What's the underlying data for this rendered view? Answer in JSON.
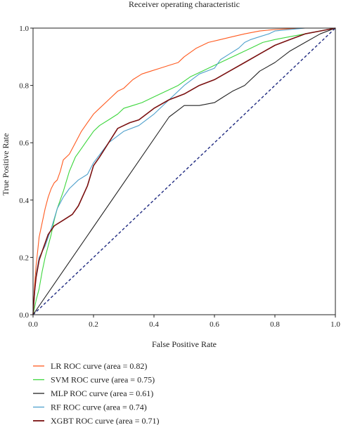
{
  "chart_data": {
    "type": "line",
    "title": "Receiver operating characteristic",
    "xlabel": "False Positive Rate",
    "ylabel": "True Positive Rate",
    "xlim": [
      0.0,
      1.0
    ],
    "ylim": [
      0.0,
      1.0
    ],
    "xticks": [
      "0.0",
      "0.2",
      "0.4",
      "0.6",
      "0.8",
      "1.0"
    ],
    "yticks": [
      "0.0",
      "0.2",
      "0.4",
      "0.6",
      "0.8",
      "1.0"
    ],
    "grid": false,
    "legend_position": "below",
    "diagonal": {
      "x": [
        0,
        1
      ],
      "y": [
        0,
        1
      ],
      "color": "#1f2a80",
      "style": "dashed"
    },
    "series": [
      {
        "name": "LR ROC curve (area = 0.82)",
        "color": "#ff5a1f",
        "x": [
          0,
          0.005,
          0.01,
          0.015,
          0.02,
          0.03,
          0.04,
          0.05,
          0.06,
          0.07,
          0.08,
          0.09,
          0.1,
          0.12,
          0.14,
          0.16,
          0.18,
          0.2,
          0.22,
          0.25,
          0.28,
          0.3,
          0.33,
          0.36,
          0.39,
          0.42,
          0.45,
          0.48,
          0.5,
          0.54,
          0.58,
          0.62,
          0.66,
          0.7,
          0.75,
          0.8,
          0.85,
          0.9,
          0.95,
          1.0
        ],
        "y": [
          0,
          0.1,
          0.17,
          0.22,
          0.27,
          0.32,
          0.37,
          0.41,
          0.44,
          0.46,
          0.47,
          0.5,
          0.54,
          0.56,
          0.6,
          0.64,
          0.67,
          0.7,
          0.72,
          0.75,
          0.78,
          0.79,
          0.82,
          0.84,
          0.85,
          0.86,
          0.87,
          0.88,
          0.9,
          0.93,
          0.95,
          0.96,
          0.97,
          0.98,
          0.99,
          0.995,
          0.998,
          1.0,
          1.0,
          1.0
        ]
      },
      {
        "name": "SVM ROC curve (area = 0.75)",
        "color": "#3cd63c",
        "x": [
          0,
          0.01,
          0.02,
          0.03,
          0.04,
          0.05,
          0.06,
          0.07,
          0.08,
          0.1,
          0.12,
          0.14,
          0.16,
          0.18,
          0.2,
          0.22,
          0.25,
          0.28,
          0.3,
          0.33,
          0.36,
          0.4,
          0.44,
          0.48,
          0.52,
          0.56,
          0.6,
          0.64,
          0.68,
          0.72,
          0.76,
          0.8,
          0.85,
          0.9,
          0.95,
          1.0
        ],
        "y": [
          0,
          0.05,
          0.09,
          0.15,
          0.2,
          0.24,
          0.28,
          0.33,
          0.37,
          0.43,
          0.5,
          0.55,
          0.58,
          0.61,
          0.64,
          0.66,
          0.68,
          0.7,
          0.72,
          0.73,
          0.74,
          0.76,
          0.78,
          0.8,
          0.83,
          0.85,
          0.87,
          0.89,
          0.91,
          0.93,
          0.95,
          0.96,
          0.97,
          0.98,
          0.99,
          1.0
        ]
      },
      {
        "name": "MLP ROC curve (area = 0.61)",
        "color": "#222222",
        "x": [
          0,
          0.45,
          0.5,
          0.55,
          0.6,
          0.63,
          0.66,
          0.7,
          0.75,
          0.8,
          0.85,
          0.9,
          0.95,
          1.0
        ],
        "y": [
          0,
          0.69,
          0.73,
          0.73,
          0.74,
          0.76,
          0.78,
          0.8,
          0.85,
          0.88,
          0.92,
          0.95,
          0.98,
          1.0
        ]
      },
      {
        "name": "RF ROC curve (area = 0.74)",
        "color": "#4fa0cc",
        "x": [
          0,
          0.01,
          0.02,
          0.04,
          0.06,
          0.08,
          0.1,
          0.12,
          0.15,
          0.18,
          0.2,
          0.25,
          0.3,
          0.35,
          0.4,
          0.45,
          0.5,
          0.55,
          0.6,
          0.62,
          0.65,
          0.68,
          0.7,
          0.72,
          0.75,
          0.78,
          0.8,
          0.85,
          0.9,
          0.95,
          1.0
        ],
        "y": [
          0,
          0.14,
          0.2,
          0.24,
          0.3,
          0.37,
          0.41,
          0.44,
          0.47,
          0.49,
          0.53,
          0.6,
          0.64,
          0.66,
          0.7,
          0.75,
          0.8,
          0.84,
          0.86,
          0.89,
          0.91,
          0.93,
          0.95,
          0.96,
          0.97,
          0.98,
          0.99,
          0.995,
          1.0,
          1.0,
          1.0
        ]
      },
      {
        "name": "XGBT ROC curve (area = 0.71)",
        "color": "#7a1010",
        "x": [
          0,
          0.005,
          0.01,
          0.02,
          0.03,
          0.05,
          0.07,
          0.1,
          0.13,
          0.15,
          0.18,
          0.2,
          0.22,
          0.25,
          0.28,
          0.3,
          0.32,
          0.35,
          0.4,
          0.45,
          0.5,
          0.55,
          0.6,
          0.65,
          0.7,
          0.75,
          0.8,
          0.85,
          0.9,
          0.95,
          1.0
        ],
        "y": [
          0,
          0.08,
          0.13,
          0.19,
          0.22,
          0.28,
          0.31,
          0.33,
          0.35,
          0.38,
          0.45,
          0.52,
          0.55,
          0.6,
          0.65,
          0.66,
          0.67,
          0.68,
          0.72,
          0.75,
          0.77,
          0.8,
          0.82,
          0.85,
          0.88,
          0.91,
          0.94,
          0.96,
          0.98,
          0.99,
          1.0
        ]
      }
    ]
  }
}
